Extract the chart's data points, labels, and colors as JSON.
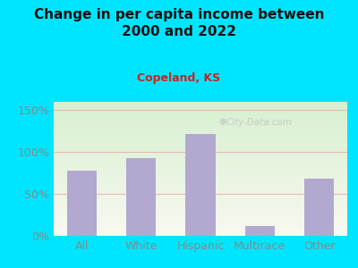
{
  "title": "Change in per capita income between\n2000 and 2022",
  "subtitle": "Copeland, KS",
  "categories": [
    "All",
    "White",
    "Hispanic",
    "Multirace",
    "Other"
  ],
  "values": [
    78,
    93,
    122,
    12,
    68
  ],
  "bar_color": "#b3a8d0",
  "background_outer": "#00e5ff",
  "background_plot_top": "#d6f0d0",
  "background_plot_bottom": "#f8f8f0",
  "title_color": "#111111",
  "subtitle_color": "#cc2222",
  "tick_color": "#888888",
  "grid_color": "#e8a0a0",
  "ylabel_ticks": [
    0,
    50,
    100,
    150
  ],
  "ylabel_labels": [
    "0%",
    "50%",
    "100%",
    "150%"
  ],
  "ylim": [
    0,
    160
  ],
  "watermark": "City-Data.com"
}
